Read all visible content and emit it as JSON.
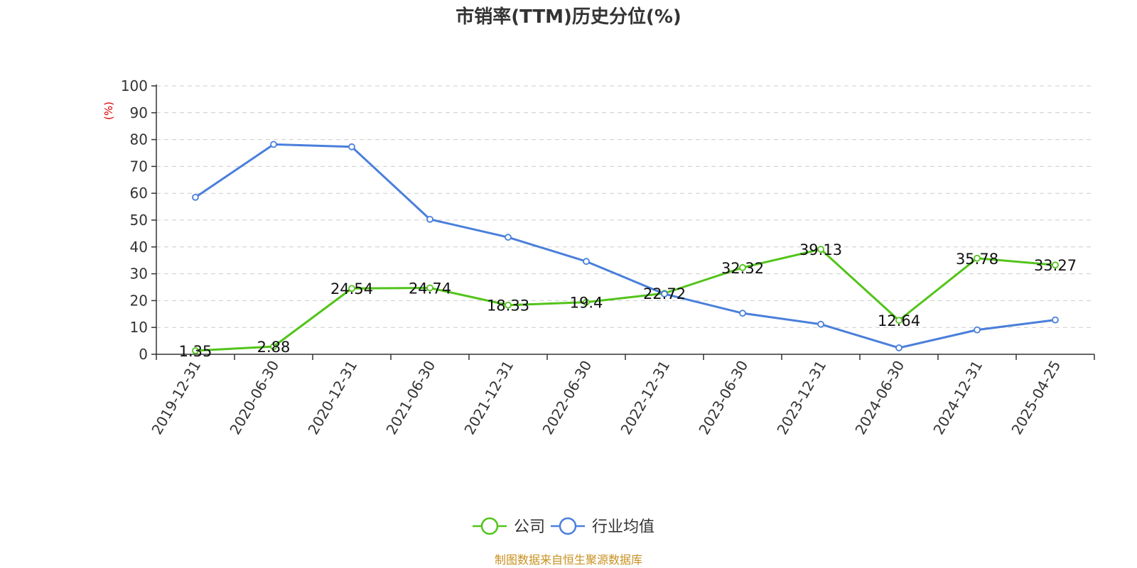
{
  "title": "市销率(TTM)历史分位(%)",
  "source": "制图数据来自恒生聚源数据库",
  "chart_data": {
    "type": "line",
    "title": "市销率(TTM)历史分位(%)",
    "ylabel": "(%)",
    "xlabel": "",
    "ylim": [
      0,
      100
    ],
    "yticks": [
      0,
      10,
      20,
      30,
      40,
      50,
      60,
      70,
      80,
      90,
      100
    ],
    "grid": true,
    "legend_position": "bottom-center",
    "categories": [
      "2019-12-31",
      "2020-06-30",
      "2020-12-31",
      "2021-06-30",
      "2021-12-31",
      "2022-06-30",
      "2022-12-31",
      "2023-06-30",
      "2023-12-31",
      "2024-06-30",
      "2024-12-31",
      "2025-04-25"
    ],
    "series": [
      {
        "name": "公司",
        "color": "#52c41a",
        "show_labels": true,
        "values": [
          1.35,
          2.88,
          24.54,
          24.74,
          18.33,
          19.4,
          22.72,
          32.32,
          39.13,
          12.64,
          35.78,
          33.27
        ],
        "labels": [
          "1.35",
          "2.88",
          "24.54",
          "24.74",
          "18.33",
          "19.4",
          "22.72",
          "32.32",
          "39.13",
          "12.64",
          "35.78",
          "33.27"
        ]
      },
      {
        "name": "行业均值",
        "color": "#4a7fdb",
        "show_labels": false,
        "values": [
          58.5,
          78.2,
          77.3,
          50.3,
          43.6,
          34.6,
          22.5,
          15.3,
          11.2,
          2.4,
          9.1,
          12.8
        ]
      }
    ]
  }
}
